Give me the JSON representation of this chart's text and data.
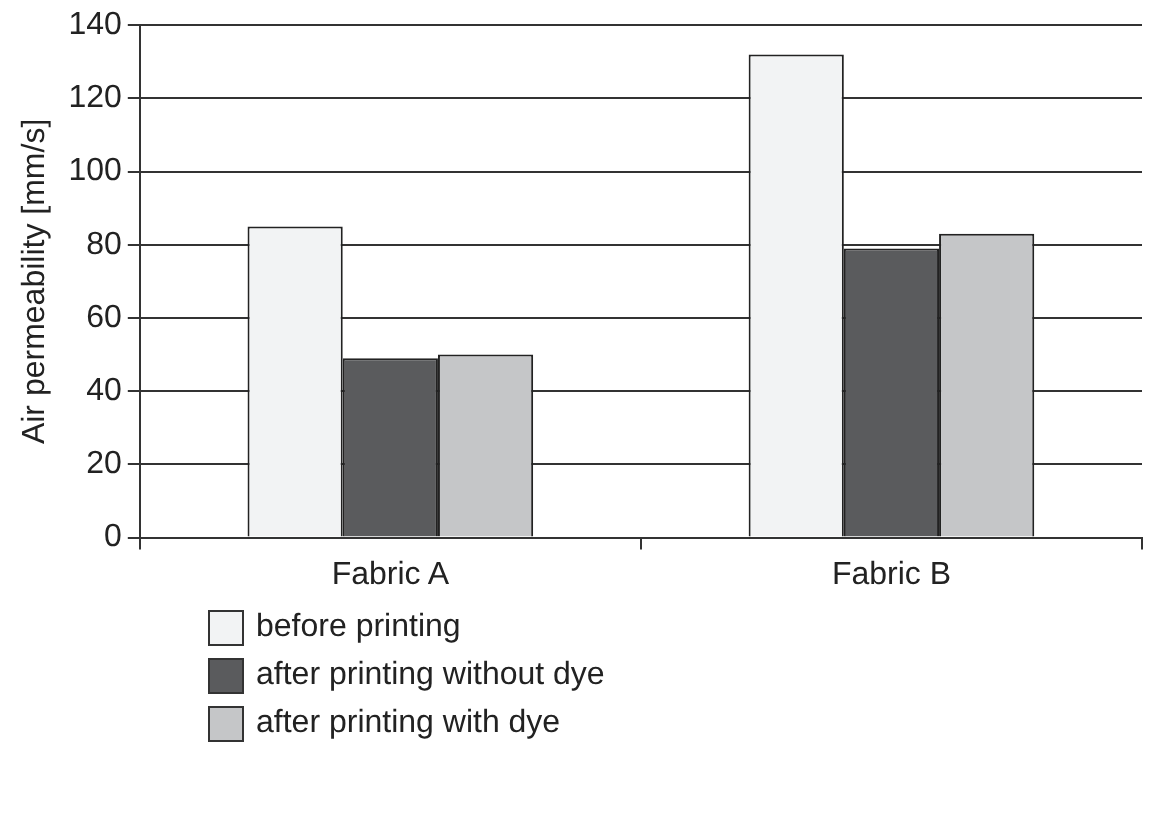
{
  "chart_data": {
    "type": "bar",
    "ylabel": "Air permeability [mm/s]",
    "categories": [
      "Fabric A",
      "Fabric B"
    ],
    "series": [
      {
        "name": "before printing",
        "color": "#f2f3f4",
        "values": [
          85,
          132
        ]
      },
      {
        "name": "after printing without dye",
        "color": "#5a5b5d",
        "values": [
          49,
          79
        ]
      },
      {
        "name": "after printing with dye",
        "color": "#c5c6c8",
        "values": [
          50,
          83
        ]
      }
    ],
    "ylim": [
      0,
      140
    ],
    "yticks": [
      0,
      20,
      40,
      60,
      80,
      100,
      120,
      140
    ],
    "grid": "y",
    "legend": "bottom"
  }
}
